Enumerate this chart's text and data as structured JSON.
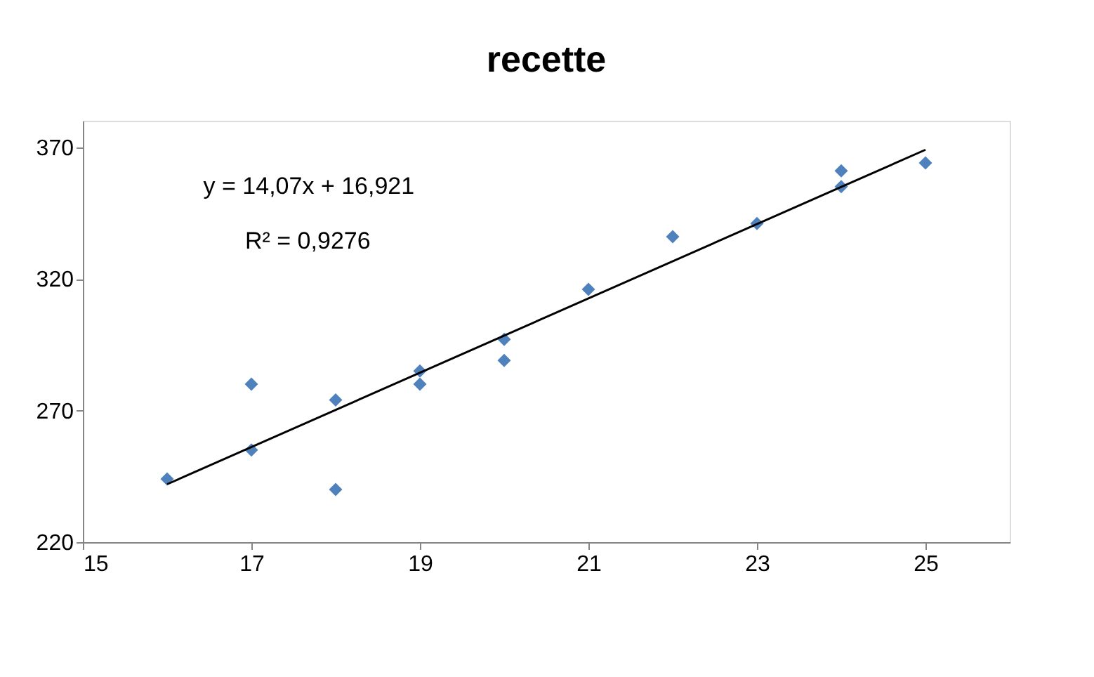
{
  "chart_data": {
    "type": "scatter",
    "title": "recette",
    "xlim": [
      15,
      26
    ],
    "xticks": [
      15,
      17,
      19,
      21,
      23,
      25
    ],
    "ylim": [
      220,
      380
    ],
    "yticks": [
      220,
      270,
      320,
      370
    ],
    "grid": false,
    "marker": "diamond",
    "annotations": [
      "y = 14,07x + 16,921",
      "R² = 0,9276"
    ],
    "series": [
      {
        "color": "#4f81bd",
        "x": [
          16,
          17,
          17,
          18,
          18,
          19,
          19,
          20,
          20,
          21,
          22,
          23,
          24,
          24,
          25
        ],
        "values": [
          244,
          280,
          255,
          274,
          240,
          285,
          280,
          297,
          289,
          316,
          336,
          341,
          361,
          355,
          364
        ]
      },
      {
        "type": "line",
        "color": "#000000",
        "line_style": "solid",
        "marker": "none",
        "x": [
          16,
          25
        ],
        "values": [
          242,
          369
        ]
      }
    ]
  }
}
